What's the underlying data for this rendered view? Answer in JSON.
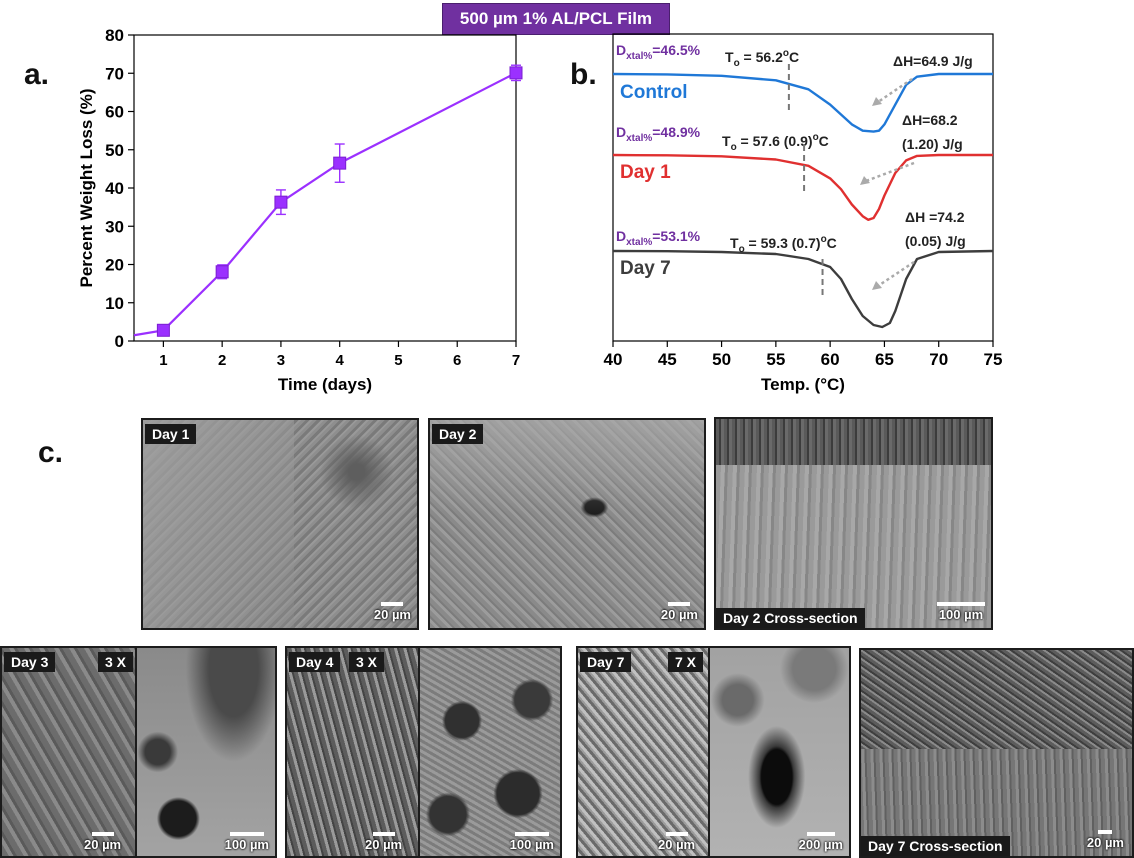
{
  "banner": "500 µm 1% AL/PCL Film",
  "letters": {
    "a": "a.",
    "b": "b.",
    "c": "c."
  },
  "colors": {
    "purple": "#9b30ff",
    "control": "#1f78d7",
    "day1": "#e03030",
    "day7": "#3d3d3d",
    "ann_purple": "#7030a0"
  },
  "chart_data": [
    {
      "type": "line",
      "title": "",
      "xlabel": "Time (days)",
      "ylabel": "Percent Weight Loss (%)",
      "xlim": [
        0.5,
        7.0
      ],
      "ylim": [
        0,
        80
      ],
      "x_ticks": [
        1,
        2,
        3,
        4,
        5,
        6,
        7
      ],
      "y_ticks": [
        0,
        10,
        20,
        30,
        40,
        50,
        60,
        70,
        80
      ],
      "series": [
        {
          "x": [
            1,
            2,
            3,
            4,
            7
          ],
          "y": [
            2.8,
            18.1,
            36.3,
            46.5,
            70.1
          ],
          "error": [
            0.5,
            1.8,
            3.2,
            5.0,
            2.0
          ],
          "marker": "square"
        }
      ],
      "grid": false,
      "legend": "none"
    },
    {
      "type": "line",
      "title": "",
      "xlabel": "Temp. (°C)",
      "ylabel": "",
      "xlim": [
        40,
        75
      ],
      "x_ticks": [
        40,
        45,
        50,
        55,
        60,
        65,
        70,
        75
      ],
      "y_ticks": [],
      "series": [
        {
          "name": "Control",
          "x": [
            40,
            45,
            50,
            55,
            58,
            60,
            61,
            62,
            63,
            64,
            64.5,
            65,
            66,
            67,
            68,
            70,
            75
          ],
          "y": [
            100,
            99.5,
            98,
            93,
            83,
            66,
            55,
            44,
            37,
            36,
            37,
            44,
            66,
            88,
            97,
            100,
            100
          ]
        },
        {
          "name": "Day 1",
          "x": [
            40,
            45,
            50,
            55,
            58,
            60,
            61,
            62,
            63,
            63.5,
            64,
            64.5,
            65,
            66,
            67,
            68,
            70,
            75
          ],
          "y": [
            100,
            99.6,
            98.5,
            95,
            88,
            74,
            62,
            45,
            32,
            28,
            30,
            40,
            55,
            80,
            94,
            99,
            100,
            100
          ]
        },
        {
          "name": "Day 7",
          "x": [
            40,
            45,
            50,
            55,
            58,
            60,
            61,
            62,
            63,
            64,
            64.8,
            65.5,
            66,
            67,
            68,
            70,
            75
          ],
          "y": [
            100,
            99.8,
            99,
            97,
            92,
            84,
            72,
            52,
            35,
            26,
            24,
            28,
            40,
            72,
            92,
            99,
            100
          ]
        }
      ],
      "annotations": [
        {
          "dxtal": "D",
          "dxtal_sub": "xtal%",
          "dxtal_val": "=46.5%",
          "onset": "T",
          "onset_sub": "o",
          "onset_val": " = 56.2",
          "onset_sup": "o",
          "onset_unit": "C",
          "onset_x": 56.2,
          "dh_line1": "ΔH=64.9 J/g",
          "dh_line2": ""
        },
        {
          "dxtal": "D",
          "dxtal_sub": "xtal%",
          "dxtal_val": "=48.9%",
          "onset": "T",
          "onset_sub": "o",
          "onset_val": " = 57.6 (0.9)",
          "onset_sup": "o",
          "onset_unit": "C",
          "onset_x": 57.6,
          "dh_line1": "ΔH=68.2",
          "dh_line2": "(1.20) J/g"
        },
        {
          "dxtal": "D",
          "dxtal_sub": "xtal%",
          "dxtal_val": "=53.1%",
          "onset": "T",
          "onset_sub": "o",
          "onset_val": " = 59.3 (0.7)",
          "onset_sup": "o",
          "onset_unit": "C",
          "onset_x": 59.3,
          "dh_line1": "ΔH =74.2",
          "dh_line2": "(0.05) J/g"
        }
      ],
      "grid": false,
      "legend": "inline-labels"
    }
  ],
  "images": {
    "day1": {
      "label": "Day 1",
      "scale": "20 µm"
    },
    "day2": {
      "label": "Day 2",
      "scale": "20 µm"
    },
    "day2cs": {
      "label": "Day 2 Cross-section",
      "scale": "100 µm"
    },
    "day3": {
      "label": "Day 3",
      "mag": "3 X",
      "scale_left": "20 µm",
      "scale_right": "100 µm"
    },
    "day4": {
      "label": "Day 4",
      "mag": "3 X",
      "scale_left": "20 µm",
      "scale_right": "100 µm"
    },
    "day7": {
      "label": "Day 7",
      "mag": "7 X",
      "scale_left": "20 µm",
      "scale_right": "200 µm"
    },
    "day7cs": {
      "label": "Day 7 Cross-section",
      "scale": "20 µm"
    }
  }
}
